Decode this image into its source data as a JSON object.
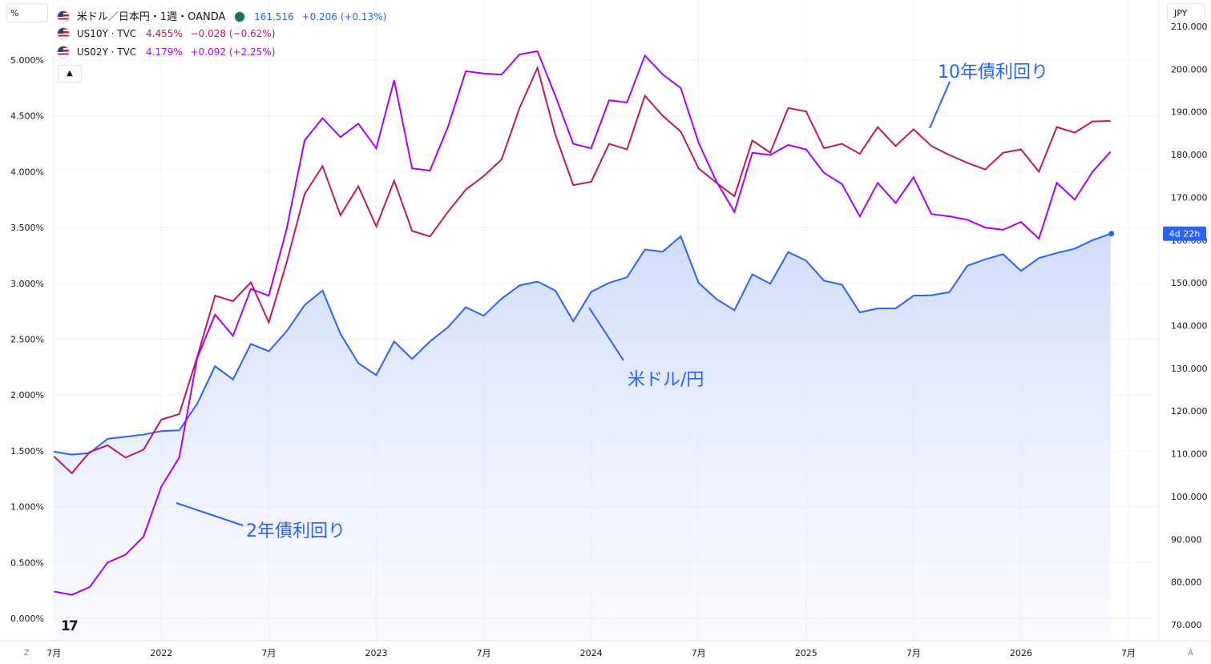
{
  "header": {
    "main_series_label": "米ドル／日本円・1週・OANDA",
    "main_price": "161.516",
    "main_change": "+0.206 (+0.13%)",
    "us10y_label": "US10Y · TVC",
    "us10y_price": "4.455%",
    "us10y_change": "−0.028 (−0.62%)",
    "us02y_label": "US02Y · TVC",
    "us02y_price": "4.179%",
    "us02y_change": "+0.092 (+2.25%)",
    "collapse_icon": "chevron-up-icon"
  },
  "left_scale_unit": "%",
  "right_scale_unit": "JPY",
  "price_tag": "4d 22h",
  "annotations": {
    "ten_year": "10年債利回り",
    "two_year": "2年債利回り",
    "usdjpy": "米ドル/円"
  },
  "corner_labels": {
    "left": "Z",
    "right": "A"
  },
  "colors": {
    "usdjpy": "#2962ff",
    "us10y": "#c2185b",
    "us02y": "#aa00ff",
    "area_fill": "#e8edfd",
    "grid": "#f0f3fa",
    "axis_text": "#131722"
  },
  "chart_data": {
    "type": "line",
    "title": "米ドル／日本円・1週・OANDA",
    "x_ticks": [
      "7月",
      "2022",
      "7月",
      "2023",
      "7月",
      "2024",
      "7月",
      "2025",
      "7月",
      "2026",
      "7月"
    ],
    "y_left_ticks": [
      "0.000%",
      "0.500%",
      "1.000%",
      "1.500%",
      "2.000%",
      "2.500%",
      "3.000%",
      "3.500%",
      "4.000%",
      "4.500%",
      "5.000%"
    ],
    "y_left_range": [
      -0.05,
      5.5
    ],
    "y_right_ticks": [
      "70.000",
      "80.000",
      "90.000",
      "100.000",
      "110.000",
      "120.000",
      "130.000",
      "140.000",
      "150.000",
      "160.000",
      "170.000",
      "180.000",
      "190.000",
      "200.000",
      "210.000"
    ],
    "y_right_range": [
      68.6,
      211.8
    ],
    "series": [
      {
        "name": "米ドル／日本円",
        "axis": "right",
        "style": "area",
        "points": [
          [
            "2021-07",
            110.5
          ],
          [
            "2021-08",
            109.8
          ],
          [
            "2021-09",
            110.2
          ],
          [
            "2021-10",
            113.5
          ],
          [
            "2021-11",
            114.0
          ],
          [
            "2021-12",
            114.5
          ],
          [
            "2022-01",
            115.3
          ],
          [
            "2022-02",
            115.5
          ],
          [
            "2022-03",
            121.7
          ],
          [
            "2022-04",
            130.5
          ],
          [
            "2022-05",
            127.4
          ],
          [
            "2022-06",
            135.7
          ],
          [
            "2022-07",
            134.0
          ],
          [
            "2022-08",
            138.7
          ],
          [
            "2022-09",
            144.8
          ],
          [
            "2022-10",
            148.2
          ],
          [
            "2022-11",
            138.1
          ],
          [
            "2022-12",
            131.2
          ],
          [
            "2023-01",
            128.4
          ],
          [
            "2023-02",
            136.3
          ],
          [
            "2023-03",
            132.2
          ],
          [
            "2023-04",
            136.3
          ],
          [
            "2023-05",
            139.6
          ],
          [
            "2023-06",
            144.3
          ],
          [
            "2023-07",
            142.3
          ],
          [
            "2023-08",
            146.3
          ],
          [
            "2023-09",
            149.4
          ],
          [
            "2023-10",
            150.3
          ],
          [
            "2023-11",
            148.2
          ],
          [
            "2023-12",
            141.0
          ],
          [
            "2024-01",
            147.9
          ],
          [
            "2024-02",
            150.0
          ],
          [
            "2024-03",
            151.3
          ],
          [
            "2024-04",
            157.8
          ],
          [
            "2024-05",
            157.3
          ],
          [
            "2024-06",
            160.9
          ],
          [
            "2024-07",
            150.0
          ],
          [
            "2024-08",
            146.2
          ],
          [
            "2024-09",
            143.6
          ],
          [
            "2024-10",
            152.0
          ],
          [
            "2024-11",
            149.8
          ],
          [
            "2024-12",
            157.2
          ],
          [
            "2025-01",
            155.2
          ],
          [
            "2025-02",
            150.5
          ],
          [
            "2025-03",
            149.6
          ],
          [
            "2025-04",
            143.1
          ],
          [
            "2025-05",
            144.0
          ],
          [
            "2025-06",
            144.0
          ],
          [
            "2025-07",
            147.0
          ],
          [
            "2025-08",
            147.1
          ],
          [
            "2025-09",
            147.8
          ],
          [
            "2025-10",
            154.0
          ],
          [
            "2025-11",
            155.5
          ],
          [
            "2025-12",
            156.7
          ],
          [
            "2026-01",
            152.8
          ],
          [
            "2026-02",
            155.8
          ],
          [
            "2026-03",
            157.0
          ],
          [
            "2026-04",
            158.0
          ],
          [
            "2026-05",
            160.0
          ],
          [
            "2026-06",
            161.5
          ]
        ]
      },
      {
        "name": "US10Y",
        "axis": "left",
        "points": [
          [
            "2021-07",
            1.45
          ],
          [
            "2021-08",
            1.3
          ],
          [
            "2021-09",
            1.49
          ],
          [
            "2021-10",
            1.55
          ],
          [
            "2021-11",
            1.44
          ],
          [
            "2021-12",
            1.51
          ],
          [
            "2022-01",
            1.78
          ],
          [
            "2022-02",
            1.83
          ],
          [
            "2022-03",
            2.34
          ],
          [
            "2022-04",
            2.89
          ],
          [
            "2022-05",
            2.84
          ],
          [
            "2022-06",
            3.01
          ],
          [
            "2022-07",
            2.65
          ],
          [
            "2022-08",
            3.19
          ],
          [
            "2022-09",
            3.8
          ],
          [
            "2022-10",
            4.05
          ],
          [
            "2022-11",
            3.61
          ],
          [
            "2022-12",
            3.87
          ],
          [
            "2023-01",
            3.51
          ],
          [
            "2023-02",
            3.92
          ],
          [
            "2023-03",
            3.47
          ],
          [
            "2023-04",
            3.42
          ],
          [
            "2023-05",
            3.64
          ],
          [
            "2023-06",
            3.84
          ],
          [
            "2023-07",
            3.96
          ],
          [
            "2023-08",
            4.11
          ],
          [
            "2023-09",
            4.57
          ],
          [
            "2023-10",
            4.93
          ],
          [
            "2023-11",
            4.33
          ],
          [
            "2023-12",
            3.88
          ],
          [
            "2024-01",
            3.91
          ],
          [
            "2024-02",
            4.25
          ],
          [
            "2024-03",
            4.2
          ],
          [
            "2024-04",
            4.68
          ],
          [
            "2024-05",
            4.5
          ],
          [
            "2024-06",
            4.36
          ],
          [
            "2024-07",
            4.03
          ],
          [
            "2024-08",
            3.9
          ],
          [
            "2024-09",
            3.78
          ],
          [
            "2024-10",
            4.28
          ],
          [
            "2024-11",
            4.17
          ],
          [
            "2024-12",
            4.57
          ],
          [
            "2025-01",
            4.54
          ],
          [
            "2025-02",
            4.21
          ],
          [
            "2025-03",
            4.25
          ],
          [
            "2025-04",
            4.16
          ],
          [
            "2025-05",
            4.4
          ],
          [
            "2025-06",
            4.23
          ],
          [
            "2025-07",
            4.38
          ],
          [
            "2025-08",
            4.23
          ],
          [
            "2025-09",
            4.15
          ],
          [
            "2025-10",
            4.08
          ],
          [
            "2025-11",
            4.02
          ],
          [
            "2025-12",
            4.17
          ],
          [
            "2026-01",
            4.2
          ],
          [
            "2026-02",
            4.0
          ],
          [
            "2026-03",
            4.4
          ],
          [
            "2026-04",
            4.35
          ],
          [
            "2026-05",
            4.45
          ],
          [
            "2026-06",
            4.455
          ]
        ]
      },
      {
        "name": "US02Y",
        "axis": "left",
        "points": [
          [
            "2021-07",
            0.24
          ],
          [
            "2021-08",
            0.21
          ],
          [
            "2021-09",
            0.28
          ],
          [
            "2021-10",
            0.5
          ],
          [
            "2021-11",
            0.57
          ],
          [
            "2021-12",
            0.73
          ],
          [
            "2022-01",
            1.18
          ],
          [
            "2022-02",
            1.44
          ],
          [
            "2022-03",
            2.33
          ],
          [
            "2022-04",
            2.72
          ],
          [
            "2022-05",
            2.53
          ],
          [
            "2022-06",
            2.95
          ],
          [
            "2022-07",
            2.89
          ],
          [
            "2022-08",
            3.49
          ],
          [
            "2022-09",
            4.28
          ],
          [
            "2022-10",
            4.48
          ],
          [
            "2022-11",
            4.31
          ],
          [
            "2022-12",
            4.43
          ],
          [
            "2023-01",
            4.21
          ],
          [
            "2023-02",
            4.82
          ],
          [
            "2023-03",
            4.03
          ],
          [
            "2023-04",
            4.01
          ],
          [
            "2023-05",
            4.4
          ],
          [
            "2023-06",
            4.9
          ],
          [
            "2023-07",
            4.88
          ],
          [
            "2023-08",
            4.87
          ],
          [
            "2023-09",
            5.05
          ],
          [
            "2023-10",
            5.08
          ],
          [
            "2023-11",
            4.68
          ],
          [
            "2023-12",
            4.25
          ],
          [
            "2024-01",
            4.21
          ],
          [
            "2024-02",
            4.64
          ],
          [
            "2024-03",
            4.62
          ],
          [
            "2024-04",
            5.04
          ],
          [
            "2024-05",
            4.87
          ],
          [
            "2024-06",
            4.75
          ],
          [
            "2024-07",
            4.26
          ],
          [
            "2024-08",
            3.91
          ],
          [
            "2024-09",
            3.64
          ],
          [
            "2024-10",
            4.17
          ],
          [
            "2024-11",
            4.15
          ],
          [
            "2024-12",
            4.24
          ],
          [
            "2025-01",
            4.2
          ],
          [
            "2025-02",
            3.99
          ],
          [
            "2025-03",
            3.89
          ],
          [
            "2025-04",
            3.6
          ],
          [
            "2025-05",
            3.9
          ],
          [
            "2025-06",
            3.72
          ],
          [
            "2025-07",
            3.95
          ],
          [
            "2025-08",
            3.62
          ],
          [
            "2025-09",
            3.6
          ],
          [
            "2025-10",
            3.57
          ],
          [
            "2025-11",
            3.5
          ],
          [
            "2025-12",
            3.48
          ],
          [
            "2026-01",
            3.55
          ],
          [
            "2026-02",
            3.4
          ],
          [
            "2026-03",
            3.9
          ],
          [
            "2026-04",
            3.75
          ],
          [
            "2026-05",
            4.0
          ],
          [
            "2026-06",
            4.179
          ]
        ]
      }
    ],
    "annotations": [
      {
        "text": "10年債利回り",
        "series": "US10Y",
        "at": "2025-07"
      },
      {
        "text": "2年債利回り",
        "series": "US02Y",
        "at": "2022-02"
      },
      {
        "text": "米ドル/円",
        "series": "米ドル／日本円",
        "at": "2023-12"
      }
    ],
    "grid": true,
    "last_price_marker": {
      "series": "米ドル／日本円",
      "value": 161.516,
      "tag": "4d 22h"
    }
  }
}
